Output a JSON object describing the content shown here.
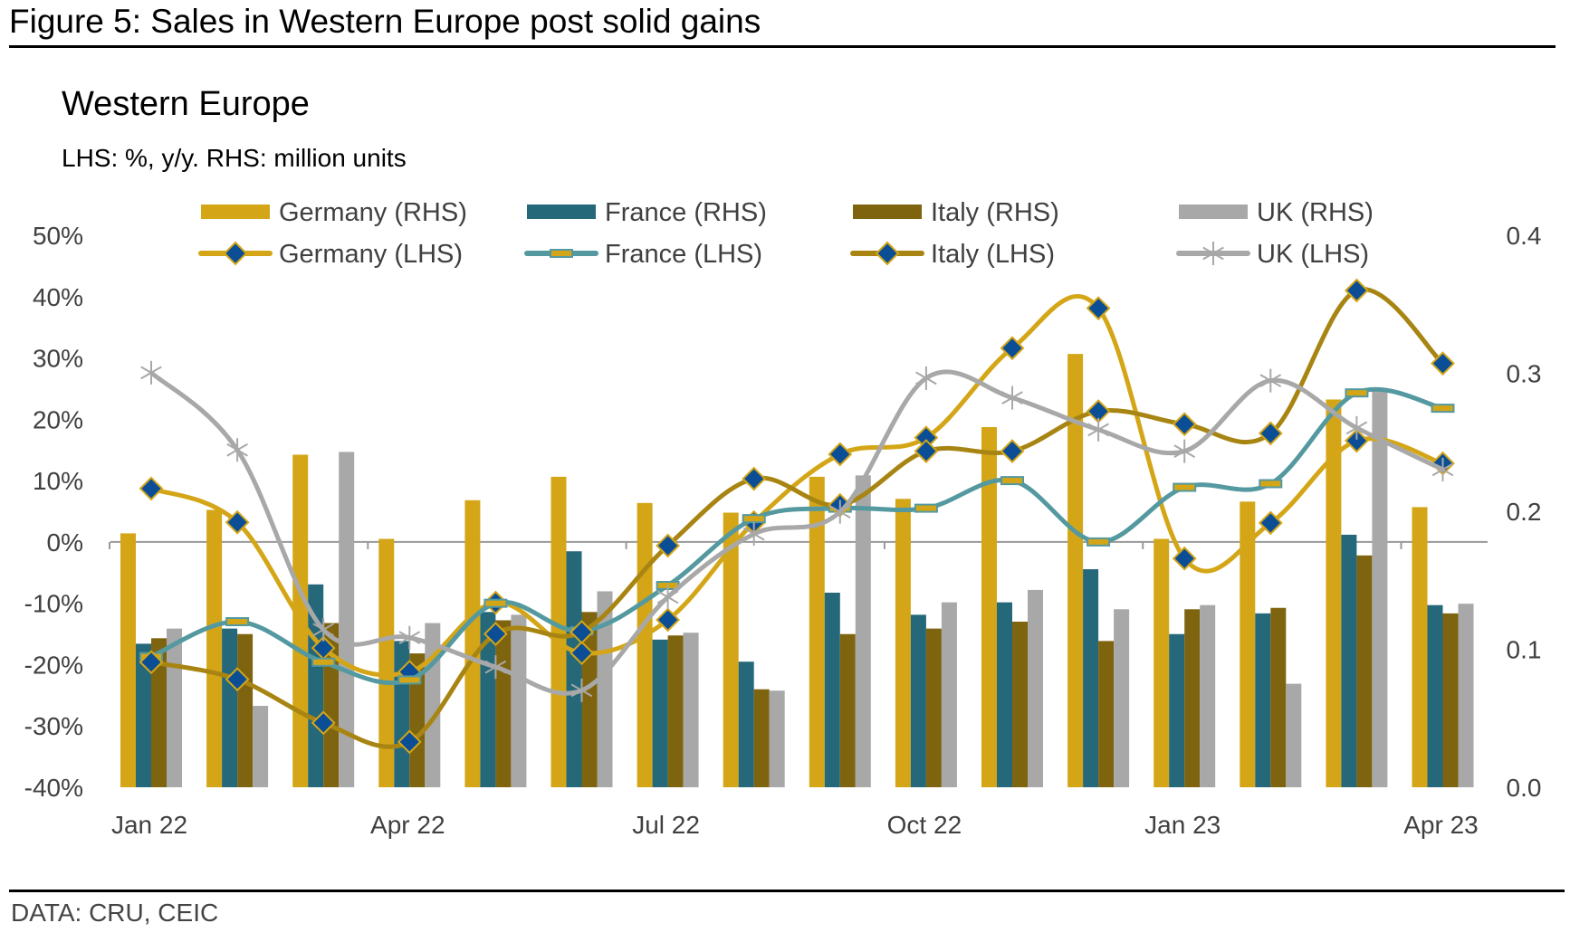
{
  "figure_title": "Figure 5: Sales in Western Europe post solid gains",
  "source": "DATA: CRU, CEIC",
  "colors": {
    "germany": "#D4A617",
    "france": "#25687A",
    "italy": "#7F6410",
    "uk": "#A8A8A8",
    "france_line": "#5499A0",
    "italy_line": "#A88512",
    "marker_fill": "#0B4E96",
    "axis": "#999999",
    "text": "#404040"
  },
  "chart_data": {
    "type": "bar",
    "title": "Western Europe",
    "subtitle": "LHS: %, y/y. RHS: million units",
    "xlabel": "",
    "ylabel_left": "%, y/y",
    "ylabel_right": "million units",
    "ylim_left": [
      -40,
      50
    ],
    "ylim_right": [
      0.0,
      0.4
    ],
    "yticks_left": [
      "50%",
      "40%",
      "30%",
      "20%",
      "10%",
      "0%",
      "-10%",
      "-20%",
      "-30%",
      "-40%"
    ],
    "yticks_left_values": [
      50,
      40,
      30,
      20,
      10,
      0,
      -10,
      -20,
      -30,
      -40
    ],
    "yticks_right": [
      "0.4",
      "0.3",
      "0.2",
      "0.1",
      "0.0"
    ],
    "yticks_right_values": [
      0.4,
      0.3,
      0.2,
      0.1,
      0.0
    ],
    "grid": false,
    "legend_position": "top",
    "categories": [
      "Jan 22",
      "Feb 22",
      "Mar 22",
      "Apr 22",
      "May 22",
      "Jun 22",
      "Jul 22",
      "Aug 22",
      "Sep 22",
      "Oct 22",
      "Nov 22",
      "Dec 22",
      "Jan 23",
      "Feb 23",
      "Mar 23",
      "Apr 23"
    ],
    "xtick_labels": [
      {
        "index": 0,
        "label": "Jan 22"
      },
      {
        "index": 3,
        "label": "Apr 22"
      },
      {
        "index": 6,
        "label": "Jul 22"
      },
      {
        "index": 9,
        "label": "Oct 22"
      },
      {
        "index": 12,
        "label": "Jan 23"
      },
      {
        "index": 15,
        "label": "Apr 23"
      }
    ],
    "bar_series": [
      {
        "name": "Germany (RHS)",
        "key": "germany",
        "axis": "right",
        "values": [
          0.184,
          0.201,
          0.241,
          0.18,
          0.208,
          0.225,
          0.206,
          0.199,
          0.225,
          0.209,
          0.261,
          0.314,
          0.18,
          0.207,
          0.281,
          0.203
        ]
      },
      {
        "name": "France (RHS)",
        "key": "france",
        "axis": "right",
        "values": [
          0.104,
          0.115,
          0.147,
          0.106,
          0.127,
          0.171,
          0.107,
          0.091,
          0.141,
          0.125,
          0.134,
          0.158,
          0.111,
          0.126,
          0.183,
          0.132
        ]
      },
      {
        "name": "Italy (RHS)",
        "key": "italy",
        "axis": "right",
        "values": [
          0.108,
          0.111,
          0.119,
          0.097,
          0.121,
          0.127,
          0.11,
          0.071,
          0.111,
          0.115,
          0.12,
          0.106,
          0.129,
          0.13,
          0.168,
          0.126
        ]
      },
      {
        "name": "UK (RHS)",
        "key": "uk",
        "axis": "right",
        "values": [
          0.115,
          0.059,
          0.243,
          0.119,
          0.125,
          0.142,
          0.112,
          0.07,
          0.226,
          0.134,
          0.143,
          0.129,
          0.132,
          0.075,
          0.287,
          0.133
        ]
      }
    ],
    "line_series": [
      {
        "name": "Germany (LHS)",
        "key": "germany",
        "axis": "left",
        "marker": "diamond",
        "values": [
          8.7,
          3.2,
          -17.3,
          -21.2,
          -9.9,
          -18.1,
          -12.7,
          3.2,
          14.3,
          17.0,
          31.6,
          38.1,
          -2.7,
          3.1,
          16.5,
          12.8
        ]
      },
      {
        "name": "France (LHS)",
        "key": "france_line",
        "axis": "left",
        "marker": "dash",
        "values": [
          -18.7,
          -13.0,
          -19.6,
          -22.5,
          -10.0,
          -14.5,
          -7.1,
          3.8,
          5.5,
          5.5,
          10.0,
          0.0,
          8.9,
          9.5,
          24.3,
          21.8
        ]
      },
      {
        "name": "Italy (LHS)",
        "key": "italy_line",
        "axis": "left",
        "marker": "diamond",
        "values": [
          -19.6,
          -22.4,
          -29.5,
          -32.6,
          -15.0,
          -14.7,
          -0.6,
          10.3,
          6.0,
          14.8,
          14.8,
          21.3,
          19.2,
          17.7,
          41.0,
          29.1
        ]
      },
      {
        "name": "UK (LHS)",
        "key": "uk",
        "axis": "left",
        "marker": "star",
        "values": [
          27.6,
          15.0,
          -14.3,
          -15.6,
          -20.4,
          -24.2,
          -9.0,
          1.3,
          4.9,
          26.7,
          23.5,
          18.3,
          14.8,
          26.3,
          18.6,
          11.8
        ]
      }
    ],
    "legend": [
      {
        "label": "Germany (RHS)",
        "kind": "bar",
        "key": "germany"
      },
      {
        "label": "France (RHS)",
        "kind": "bar",
        "key": "france"
      },
      {
        "label": "Italy (RHS)",
        "kind": "bar",
        "key": "italy"
      },
      {
        "label": "UK (RHS)",
        "kind": "bar",
        "key": "uk"
      },
      {
        "label": "Germany (LHS)",
        "kind": "line",
        "key": "germany",
        "marker": "diamond"
      },
      {
        "label": "France (LHS)",
        "kind": "line",
        "key": "france_line",
        "marker": "dash"
      },
      {
        "label": "Italy (LHS)",
        "kind": "line",
        "key": "italy_line",
        "marker": "diamond"
      },
      {
        "label": "UK (LHS)",
        "kind": "line",
        "key": "uk",
        "marker": "star"
      }
    ]
  }
}
